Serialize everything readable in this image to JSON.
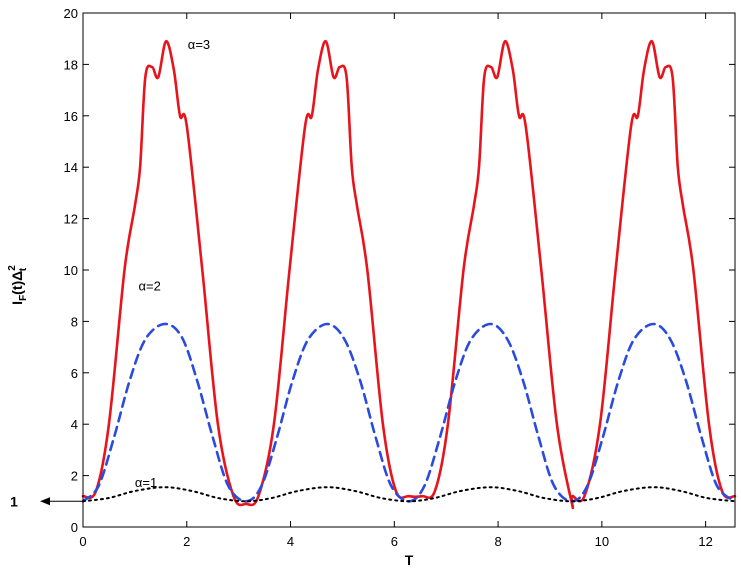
{
  "chart_data": {
    "type": "line",
    "title": "",
    "xlabel": "T",
    "ylabel": {
      "main": "I",
      "sub1": "F",
      "mid": "(t)Δ",
      "sup": "2",
      "sub2": "t"
    },
    "xlim": [
      0,
      12.566
    ],
    "ylim": [
      0,
      20
    ],
    "xticks": [
      0,
      2,
      4,
      6,
      8,
      10,
      12
    ],
    "xtick_labels": [
      "0",
      "2",
      "4",
      "6",
      "8",
      "10",
      "12"
    ],
    "yticks": [
      0,
      2,
      4,
      6,
      8,
      10,
      12,
      14,
      16,
      18,
      20
    ],
    "ytick_labels": [
      "0",
      "2",
      "4",
      "6",
      "8",
      "10",
      "12",
      "14",
      "16",
      "18",
      "20"
    ],
    "grid": false,
    "series": [
      {
        "name": "α=3",
        "color": "#e8141b",
        "dash": "solid",
        "points": [
          [
            0,
            1.2
          ],
          [
            0.25,
            1.4
          ],
          [
            0.5,
            4
          ],
          [
            0.8,
            10
          ],
          [
            1.0,
            12.5
          ],
          [
            1.1,
            14
          ],
          [
            1.2,
            17.5
          ],
          [
            1.33,
            17.9
          ],
          [
            1.45,
            17.5
          ],
          [
            1.6,
            18.9
          ],
          [
            1.75,
            17.8
          ],
          [
            1.87,
            16.0
          ],
          [
            2.0,
            15.6
          ],
          [
            2.3,
            10
          ],
          [
            2.6,
            4
          ],
          [
            2.9,
            1.2
          ],
          [
            3.1416,
            0.9
          ],
          [
            3.38,
            1.2
          ],
          [
            3.68,
            4
          ],
          [
            3.98,
            10
          ],
          [
            4.28,
            15.6
          ],
          [
            4.41,
            16.0
          ],
          [
            4.53,
            17.8
          ],
          [
            4.68,
            18.9
          ],
          [
            4.83,
            17.5
          ],
          [
            4.95,
            17.9
          ],
          [
            5.08,
            17.5
          ],
          [
            5.18,
            14
          ],
          [
            5.28,
            12.5
          ],
          [
            5.48,
            10
          ],
          [
            5.78,
            4
          ],
          [
            6.03,
            1.4
          ],
          [
            6.283,
            1.2
          ],
          [
            6.533,
            1.2
          ],
          [
            6.783,
            1.4
          ],
          [
            7.033,
            4
          ],
          [
            7.333,
            10
          ],
          [
            7.533,
            12.5
          ],
          [
            7.633,
            14
          ],
          [
            7.733,
            17.5
          ],
          [
            7.863,
            17.9
          ],
          [
            7.983,
            17.5
          ],
          [
            8.133,
            18.9
          ],
          [
            8.283,
            17.8
          ],
          [
            8.403,
            16.0
          ],
          [
            8.533,
            15.6
          ],
          [
            8.833,
            10
          ],
          [
            9.133,
            4
          ],
          [
            9.433,
            1.2
          ],
          [
            9.4248,
            0.9
          ],
          [
            9.664,
            1.2
          ],
          [
            9.964,
            4
          ],
          [
            10.264,
            10
          ],
          [
            10.564,
            15.6
          ],
          [
            10.694,
            16.0
          ],
          [
            10.814,
            17.8
          ],
          [
            10.964,
            18.9
          ],
          [
            11.114,
            17.5
          ],
          [
            11.234,
            17.9
          ],
          [
            11.364,
            17.5
          ],
          [
            11.464,
            14
          ],
          [
            11.564,
            12.5
          ],
          [
            11.764,
            10
          ],
          [
            12.064,
            4
          ],
          [
            12.316,
            1.4
          ],
          [
            12.566,
            1.2
          ]
        ]
      },
      {
        "name": "α=2",
        "color": "#2b4be0",
        "dash": "dashed",
        "points": [
          [
            0,
            1.0
          ],
          [
            0.3,
            1.6
          ],
          [
            0.6,
            3.5
          ],
          [
            0.9,
            5.7
          ],
          [
            1.2,
            7.3
          ],
          [
            1.571,
            7.9
          ],
          [
            1.9,
            7.4
          ],
          [
            2.2,
            5.7
          ],
          [
            2.5,
            3.5
          ],
          [
            2.8,
            1.6
          ],
          [
            3.1416,
            1.0
          ],
          [
            3.44,
            1.6
          ],
          [
            3.74,
            3.5
          ],
          [
            4.04,
            5.7
          ],
          [
            4.34,
            7.3
          ],
          [
            4.712,
            7.9
          ],
          [
            5.04,
            7.3
          ],
          [
            5.34,
            5.7
          ],
          [
            5.64,
            3.5
          ],
          [
            5.94,
            1.6
          ],
          [
            6.283,
            1.0
          ],
          [
            6.58,
            1.6
          ],
          [
            6.88,
            3.5
          ],
          [
            7.18,
            5.7
          ],
          [
            7.48,
            7.3
          ],
          [
            7.854,
            7.9
          ],
          [
            8.18,
            7.3
          ],
          [
            8.48,
            5.7
          ],
          [
            8.78,
            3.5
          ],
          [
            9.08,
            1.6
          ],
          [
            9.4248,
            1.0
          ],
          [
            9.72,
            1.6
          ],
          [
            10.02,
            3.5
          ],
          [
            10.32,
            5.7
          ],
          [
            10.62,
            7.3
          ],
          [
            10.996,
            7.9
          ],
          [
            11.32,
            7.3
          ],
          [
            11.62,
            5.7
          ],
          [
            11.92,
            3.5
          ],
          [
            12.22,
            1.6
          ],
          [
            12.566,
            1.0
          ]
        ]
      },
      {
        "name": "α=1",
        "color": "#000000",
        "dash": "dotted",
        "points": [
          [
            0,
            1.0
          ],
          [
            0.5,
            1.13
          ],
          [
            1.0,
            1.4
          ],
          [
            1.571,
            1.55
          ],
          [
            2.1,
            1.4
          ],
          [
            2.6,
            1.13
          ],
          [
            3.1416,
            1.0
          ],
          [
            3.64,
            1.13
          ],
          [
            4.14,
            1.4
          ],
          [
            4.712,
            1.55
          ],
          [
            5.24,
            1.4
          ],
          [
            5.74,
            1.13
          ],
          [
            6.283,
            1.0
          ],
          [
            6.78,
            1.13
          ],
          [
            7.28,
            1.4
          ],
          [
            7.854,
            1.55
          ],
          [
            8.38,
            1.4
          ],
          [
            8.88,
            1.13
          ],
          [
            9.4248,
            1.0
          ],
          [
            9.92,
            1.13
          ],
          [
            10.42,
            1.4
          ],
          [
            10.996,
            1.55
          ],
          [
            11.52,
            1.4
          ],
          [
            12.02,
            1.13
          ],
          [
            12.566,
            1.0
          ]
        ]
      }
    ],
    "annotations": [
      {
        "text": "α=3",
        "x": 2.02,
        "y": 18.8,
        "series": "α=3"
      },
      {
        "text": "α=2",
        "x": 1.07,
        "y": 9.4,
        "series": "α=2"
      },
      {
        "text": "α=1",
        "x": 1.0,
        "y": 1.75,
        "series": "α=1"
      }
    ],
    "marker": {
      "label": "1",
      "y": 1
    }
  }
}
